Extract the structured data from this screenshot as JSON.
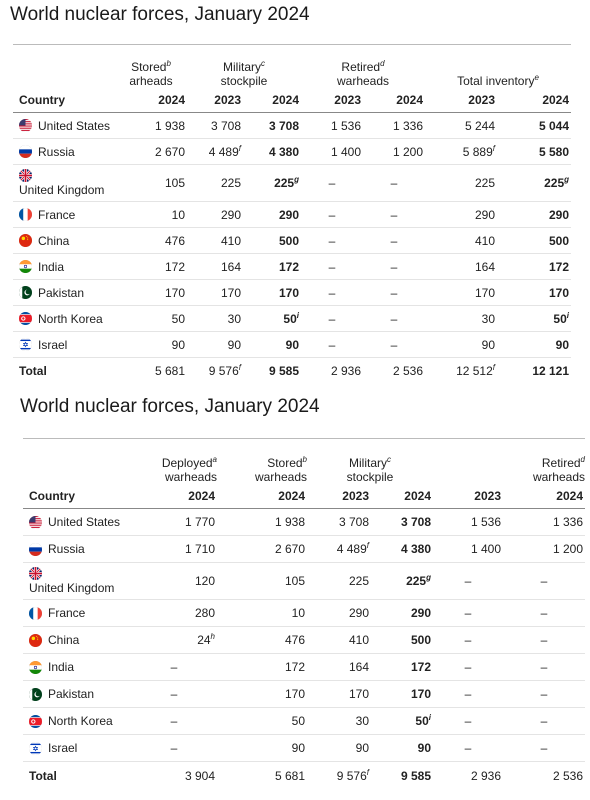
{
  "table1": {
    "title": "World nuclear forces, January 2024",
    "country_header": "Country",
    "groups": [
      {
        "label": "Stored\narheads",
        "sup": "b",
        "span": 1
      },
      {
        "label": "Military\nstockpile",
        "sup": "c",
        "span": 2
      },
      {
        "label": "Retired\nwarheads",
        "sup": "d",
        "span": 2
      },
      {
        "label": "Total inventory",
        "sup": "e",
        "span": 2
      }
    ],
    "years": [
      "2024",
      "2023",
      "2024",
      "2023",
      "2024",
      "2023",
      "2024"
    ],
    "bold_cols": [
      2,
      6
    ],
    "rows": [
      {
        "country": "United States",
        "flag": "us",
        "values": [
          "1 938",
          "3 708",
          "3 708",
          "1 536",
          "1 336",
          "5 244",
          "5 044"
        ],
        "sups": {}
      },
      {
        "country": "Russia",
        "flag": "ru",
        "values": [
          "2 670",
          "4 489",
          "4 380",
          "1 400",
          "1 200",
          "5 889",
          "5 580"
        ],
        "sups": {
          "1": "f",
          "5": "f"
        }
      },
      {
        "country": "United Kingdom",
        "flag": "uk",
        "stacked": true,
        "values": [
          "105",
          "225",
          "225",
          "–",
          "–",
          "225",
          "225"
        ],
        "sups": {
          "2": "g",
          "6": "g"
        }
      },
      {
        "country": "France",
        "flag": "fr",
        "values": [
          "10",
          "290",
          "290",
          "–",
          "–",
          "290",
          "290"
        ],
        "sups": {}
      },
      {
        "country": "China",
        "flag": "cn",
        "values": [
          "476",
          "410",
          "500",
          "–",
          "–",
          "410",
          "500"
        ],
        "sups": {}
      },
      {
        "country": "India",
        "flag": "in",
        "values": [
          "172",
          "164",
          "172",
          "–",
          "–",
          "164",
          "172"
        ],
        "sups": {}
      },
      {
        "country": "Pakistan",
        "flag": "pk",
        "values": [
          "170",
          "170",
          "170",
          "–",
          "–",
          "170",
          "170"
        ],
        "sups": {}
      },
      {
        "country": "North Korea",
        "flag": "kp",
        "values": [
          "50",
          "30",
          "50",
          "–",
          "–",
          "30",
          "50"
        ],
        "sups": {
          "2": "i",
          "6": "i"
        }
      },
      {
        "country": "Israel",
        "flag": "il",
        "values": [
          "90",
          "90",
          "90",
          "–",
          "–",
          "90",
          "90"
        ],
        "sups": {}
      }
    ],
    "total": {
      "label": "Total",
      "values": [
        "5 681",
        "9 576",
        "9 585",
        "2 936",
        "2 536",
        "12 512",
        "12 121"
      ],
      "sups": {
        "1": "f",
        "5": "f"
      }
    }
  },
  "table2": {
    "title": "World nuclear forces, January 2024",
    "country_header": "Country",
    "groups": [
      {
        "label": "Deployed\nwarheads",
        "sup": "a",
        "span": 1
      },
      {
        "label": "Stored\nwarheads",
        "sup": "b",
        "span": 1
      },
      {
        "label": "Military\nstockpile",
        "sup": "c",
        "span": 2
      },
      {
        "label": "Retired\nwarheads",
        "sup": "d",
        "span": 2
      }
    ],
    "years": [
      "2024",
      "2024",
      "2023",
      "2024",
      "2023",
      "2024"
    ],
    "bold_cols": [
      3
    ],
    "rows": [
      {
        "country": "United States",
        "flag": "us",
        "values": [
          "1 770",
          "1 938",
          "3 708",
          "3 708",
          "1 536",
          "1 336"
        ],
        "sups": {}
      },
      {
        "country": "Russia",
        "flag": "ru",
        "values": [
          "1 710",
          "2 670",
          "4 489",
          "4 380",
          "1 400",
          "1 200"
        ],
        "sups": {
          "2": "f"
        }
      },
      {
        "country": "United Kingdom",
        "flag": "uk",
        "stacked": true,
        "values": [
          "120",
          "105",
          "225",
          "225",
          "–",
          "–"
        ],
        "sups": {
          "3": "g"
        }
      },
      {
        "country": "France",
        "flag": "fr",
        "values": [
          "280",
          "10",
          "290",
          "290",
          "–",
          "–"
        ],
        "sups": {}
      },
      {
        "country": "China",
        "flag": "cn",
        "values": [
          "24",
          "476",
          "410",
          "500",
          "–",
          "–"
        ],
        "sups": {
          "0": "h"
        }
      },
      {
        "country": "India",
        "flag": "in",
        "values": [
          "–",
          "172",
          "164",
          "172",
          "–",
          "–"
        ],
        "sups": {}
      },
      {
        "country": "Pakistan",
        "flag": "pk",
        "values": [
          "–",
          "170",
          "170",
          "170",
          "–",
          "–"
        ],
        "sups": {}
      },
      {
        "country": "North Korea",
        "flag": "kp",
        "values": [
          "–",
          "50",
          "30",
          "50",
          "–",
          "–"
        ],
        "sups": {
          "3": "i"
        }
      },
      {
        "country": "Israel",
        "flag": "il",
        "values": [
          "–",
          "90",
          "90",
          "90",
          "–",
          "–"
        ],
        "sups": {}
      }
    ],
    "total": {
      "label": "Total",
      "values": [
        "3 904",
        "5 681",
        "9 576",
        "9 585",
        "2 936",
        "2 536"
      ],
      "sups": {
        "2": "f"
      }
    }
  }
}
